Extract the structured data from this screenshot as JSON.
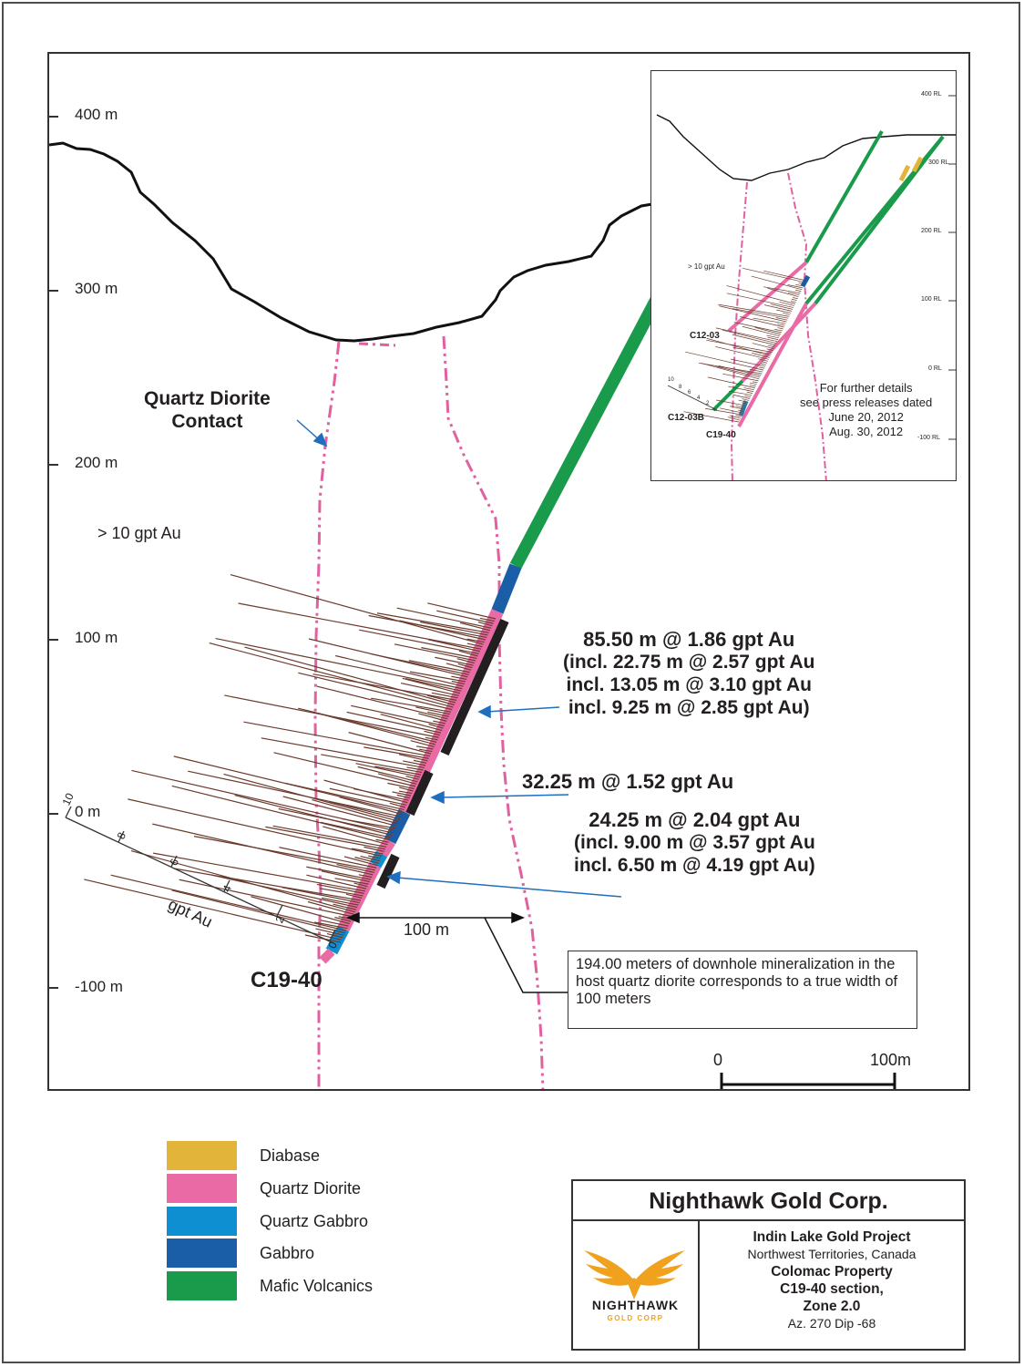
{
  "section": {
    "elevation_labels": [
      "400 m",
      "300 m",
      "200 m",
      "100 m",
      "0 m",
      "-100 m"
    ],
    "contact_label": "Quartz Diorite\nContact",
    "threshold_label": "> 10 gpt Au",
    "hole_label": "C19-40",
    "intercepts": [
      {
        "lines": [
          "85.50 m @ 1.86 gpt Au",
          "(incl. 22.75 m @ 2.57 gpt Au",
          "incl. 13.05 m @ 3.10 gpt Au",
          "incl. 9.25 m @ 2.85 gpt Au)"
        ]
      },
      {
        "lines": [
          "32.25 m @ 1.52 gpt Au"
        ]
      },
      {
        "lines": [
          "24.25 m @ 2.04 gpt Au",
          "(incl. 9.00 m @ 3.57 gpt Au",
          "incl. 6.50 m @ 4.19 gpt Au)"
        ]
      }
    ],
    "grade_axis": {
      "label": "gpt Au",
      "ticks": [
        "0",
        "2",
        "4",
        "6",
        "8",
        "10"
      ]
    },
    "true_width_label": "100 m",
    "note": "194.00 meters of downhole mineralization in the host quartz diorite corresponds to a true width of 100 meters",
    "scale_bar": {
      "start": "0",
      "end": "100m"
    }
  },
  "inset": {
    "rl_labels": [
      "400 RL",
      "300 RL",
      "200 RL",
      "100 RL",
      "0 RL",
      "-100 RL"
    ],
    "threshold_label": "> 10 gpt Au",
    "hole_labels": [
      "C12-03",
      "C12-03B",
      "C19-40"
    ],
    "grade_ticks": [
      "10",
      "8",
      "6",
      "4",
      "2"
    ],
    "details": "For further details\nsee press releases dated\nJune 20, 2012\nAug. 30, 2012"
  },
  "legend": [
    {
      "name": "Diabase",
      "color": "#e2b53a"
    },
    {
      "name": "Quartz Diorite",
      "color": "#ea6aa5"
    },
    {
      "name": "Quartz Gabbro",
      "color": "#0e8fd1"
    },
    {
      "name": "Gabbro",
      "color": "#1a5ea8"
    },
    {
      "name": "Mafic Volcanics",
      "color": "#1a9a4b"
    }
  ],
  "title_block": {
    "company": "Nighthawk Gold Corp.",
    "logo_text": "NIGHTHAWK",
    "logo_subtext": "GOLD CORP",
    "project": "Indin Lake Gold Project",
    "location": "Northwest Territories, Canada",
    "property": "Colomac Property",
    "section": "C19-40 section,",
    "zone": "Zone 2.0",
    "orientation": "Az. 270  Dip -68"
  },
  "colors": {
    "surface": "#111111",
    "contact": "#e060a0",
    "assay": "#6b3b2e",
    "arrow": "#1e6fbf",
    "intercept": "#231f20",
    "logo_gold": "#f0a21e"
  }
}
